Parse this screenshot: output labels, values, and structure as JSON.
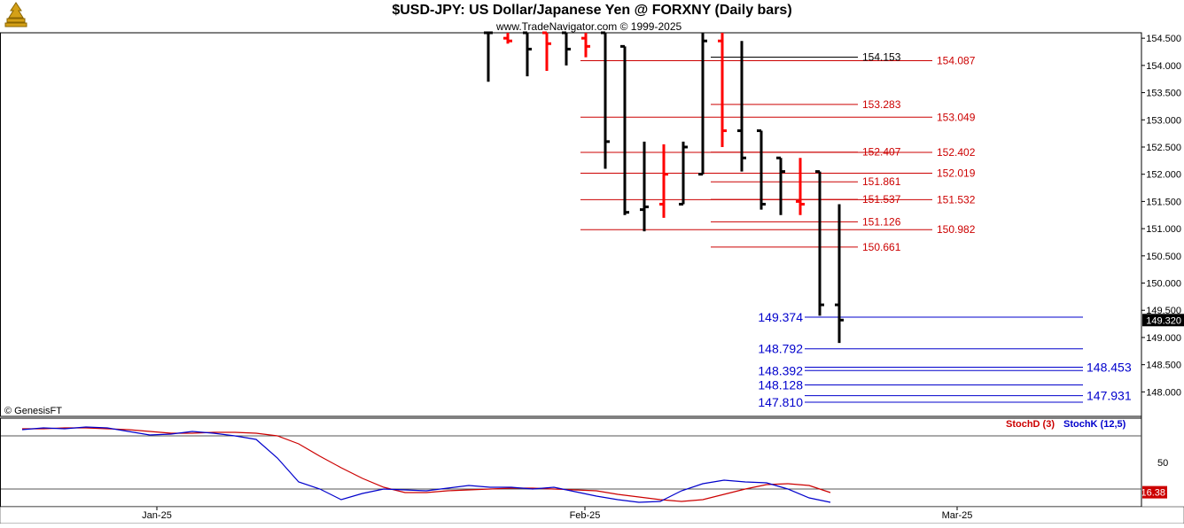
{
  "header": {
    "title": "$USD-JPY:  US Dollar/Japanese Yen @ FORXNY  (Daily bars)",
    "subtitle": "www.TradeNavigator.com © 1999-2025",
    "watermark": "© GenesisFT",
    "logo_icon": "trade-navigator-logo-icon"
  },
  "colors": {
    "up_bar": "#000000",
    "down_bar": "#ff0000",
    "resistance": "#cc0000",
    "support": "#0000cc",
    "stoch_d": "#cc0000",
    "stoch_k": "#0000cc",
    "price_tag_bg": "#000000",
    "stoch_tag_bg": "#cc0000"
  },
  "chart_data": [
    {
      "type": "ohlc",
      "title": "$USD-JPY:  US Dollar/Japanese Yen @ FORXNY  (Daily bars)",
      "ylim": [
        147.55,
        154.6
      ],
      "y_ticks": [
        "154.500",
        "154.000",
        "153.500",
        "153.000",
        "152.500",
        "152.000",
        "151.500",
        "151.000",
        "150.500",
        "150.000",
        "149.500",
        "149.000",
        "148.500",
        "148.000"
      ],
      "x_ticks": [
        "Jan-25",
        "Feb-25",
        "Mar-25"
      ],
      "last_price": "149.320",
      "bars": [
        {
          "color": "black",
          "open": 154.6,
          "high": 154.6,
          "low": 153.7,
          "close": 154.6
        },
        {
          "color": "red",
          "open": 154.5,
          "high": 154.6,
          "low": 154.4,
          "close": 154.45
        },
        {
          "color": "black",
          "open": 154.6,
          "high": 154.6,
          "low": 153.8,
          "close": 154.3
        },
        {
          "color": "red",
          "open": 154.6,
          "high": 154.6,
          "low": 153.9,
          "close": 154.4
        },
        {
          "color": "black",
          "open": 154.6,
          "high": 154.6,
          "low": 154.0,
          "close": 154.3
        },
        {
          "color": "red",
          "open": 154.5,
          "high": 154.6,
          "low": 154.15,
          "close": 154.35
        },
        {
          "color": "black",
          "open": 154.6,
          "high": 154.6,
          "low": 152.1,
          "close": 152.6
        },
        {
          "color": "black",
          "open": 154.35,
          "high": 154.35,
          "low": 151.25,
          "close": 151.3
        },
        {
          "color": "black",
          "open": 151.35,
          "high": 152.6,
          "low": 150.95,
          "close": 151.4
        },
        {
          "color": "red",
          "open": 151.45,
          "high": 152.55,
          "low": 151.2,
          "close": 152.0
        },
        {
          "color": "black",
          "open": 151.45,
          "high": 152.6,
          "low": 151.45,
          "close": 152.5
        },
        {
          "color": "black",
          "open": 152.0,
          "high": 154.6,
          "low": 152.0,
          "close": 154.45
        },
        {
          "color": "red",
          "open": 154.45,
          "high": 154.6,
          "low": 152.5,
          "close": 152.8
        },
        {
          "color": "black",
          "open": 152.8,
          "high": 154.45,
          "low": 152.05,
          "close": 152.3
        },
        {
          "color": "black",
          "open": 152.8,
          "high": 152.8,
          "low": 151.35,
          "close": 151.45
        },
        {
          "color": "black",
          "open": 152.3,
          "high": 152.3,
          "low": 151.25,
          "close": 152.05
        },
        {
          "color": "red",
          "open": 151.5,
          "high": 152.3,
          "low": 151.25,
          "close": 151.45
        },
        {
          "color": "black",
          "open": 152.05,
          "high": 152.05,
          "low": 149.4,
          "close": 149.6
        },
        {
          "color": "black",
          "open": 149.6,
          "high": 151.45,
          "low": 148.9,
          "close": 149.32
        }
      ],
      "resistance_levels": [
        {
          "value": 154.087,
          "label": "154.087"
        },
        {
          "value": 153.049,
          "label": "153.049"
        },
        {
          "value": 152.402,
          "label": "152.402"
        },
        {
          "value": 152.019,
          "label": "152.019"
        },
        {
          "value": 151.532,
          "label": "151.532"
        },
        {
          "value": 150.982,
          "label": "150.982"
        }
      ],
      "inner_levels": [
        {
          "value": 154.153,
          "label": "154.153",
          "color": "black"
        },
        {
          "value": 153.283,
          "label": "153.283",
          "color": "red"
        },
        {
          "value": 152.407,
          "label": "152.407",
          "color": "red"
        },
        {
          "value": 151.861,
          "label": "151.861",
          "color": "red"
        },
        {
          "value": 151.537,
          "label": "151.537",
          "color": "red"
        },
        {
          "value": 151.126,
          "label": "151.126",
          "color": "red"
        },
        {
          "value": 150.661,
          "label": "150.661",
          "color": "red"
        }
      ],
      "support_levels": [
        {
          "value": 149.374,
          "label": "149.374"
        },
        {
          "value": 148.792,
          "label": "148.792"
        },
        {
          "value": 148.392,
          "label": "148.392"
        },
        {
          "value": 148.128,
          "label": "148.128"
        },
        {
          "value": 147.81,
          "label": "147.810"
        }
      ],
      "support_right_levels": [
        {
          "value": 148.453,
          "label": "148.453"
        },
        {
          "value": 147.931,
          "label": "147.931"
        }
      ]
    },
    {
      "type": "line",
      "title": "",
      "ylim": [
        0,
        100
      ],
      "y_ticks": [
        "50"
      ],
      "reference_lines": [
        80,
        20
      ],
      "last_value": "16.38",
      "series": [
        {
          "name": "StochD (3)",
          "color": "#cc0000",
          "values": [
            88,
            88,
            89,
            89,
            88,
            87,
            85,
            83,
            83,
            84,
            84,
            83,
            80,
            71,
            57,
            44,
            32,
            22,
            16,
            16,
            18,
            19,
            20,
            21,
            21,
            20,
            19,
            18,
            14,
            11,
            8,
            6,
            8,
            14,
            20,
            25,
            26,
            24,
            16
          ]
        },
        {
          "name": "StochK (12,5)",
          "color": "#0000cc",
          "values": [
            87,
            89,
            88,
            90,
            89,
            85,
            81,
            82,
            85,
            83,
            80,
            76,
            55,
            28,
            20,
            8,
            15,
            20,
            19,
            18,
            21,
            24,
            22,
            22,
            20,
            22,
            17,
            12,
            8,
            5,
            6,
            18,
            26,
            30,
            28,
            27,
            20,
            10,
            5
          ]
        }
      ],
      "legend": [
        "StochD (3)",
        "StochK (12,5)"
      ]
    }
  ]
}
